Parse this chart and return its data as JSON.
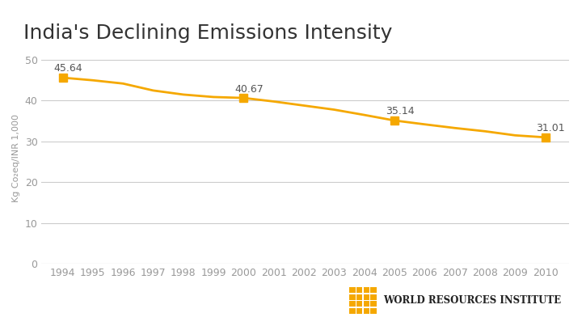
{
  "title": "India's Declining Emissions Intensity",
  "years": [
    1994,
    1995,
    1996,
    1997,
    1998,
    1999,
    2000,
    2001,
    2002,
    2003,
    2004,
    2005,
    2006,
    2007,
    2008,
    2009,
    2010
  ],
  "values": [
    45.64,
    45.0,
    44.2,
    42.5,
    41.5,
    40.9,
    40.67,
    39.8,
    38.8,
    37.8,
    36.5,
    35.14,
    34.2,
    33.3,
    32.5,
    31.5,
    31.01
  ],
  "highlighted_points": [
    {
      "year": 1994,
      "value": 45.64,
      "label": "45.64"
    },
    {
      "year": 2000,
      "value": 40.67,
      "label": "40.67"
    },
    {
      "year": 2005,
      "value": 35.14,
      "label": "35.14"
    },
    {
      "year": 2010,
      "value": 31.01,
      "label": "31.01"
    }
  ],
  "line_color": "#F5A800",
  "marker_color": "#F5A800",
  "background_color": "#FFFFFF",
  "grid_color": "#CCCCCC",
  "title_fontsize": 18,
  "ylabel": "Kg Co₂eq/INR 1,000",
  "ylim": [
    0,
    52
  ],
  "yticks": [
    0,
    10,
    20,
    30,
    40,
    50
  ],
  "xlabel_fontsize": 9,
  "ylabel_fontsize": 8,
  "tick_label_color": "#999999",
  "title_color": "#333333",
  "wri_text": "WORLD RESOURCES INSTITUTE",
  "wri_logo_color": "#F5A800"
}
